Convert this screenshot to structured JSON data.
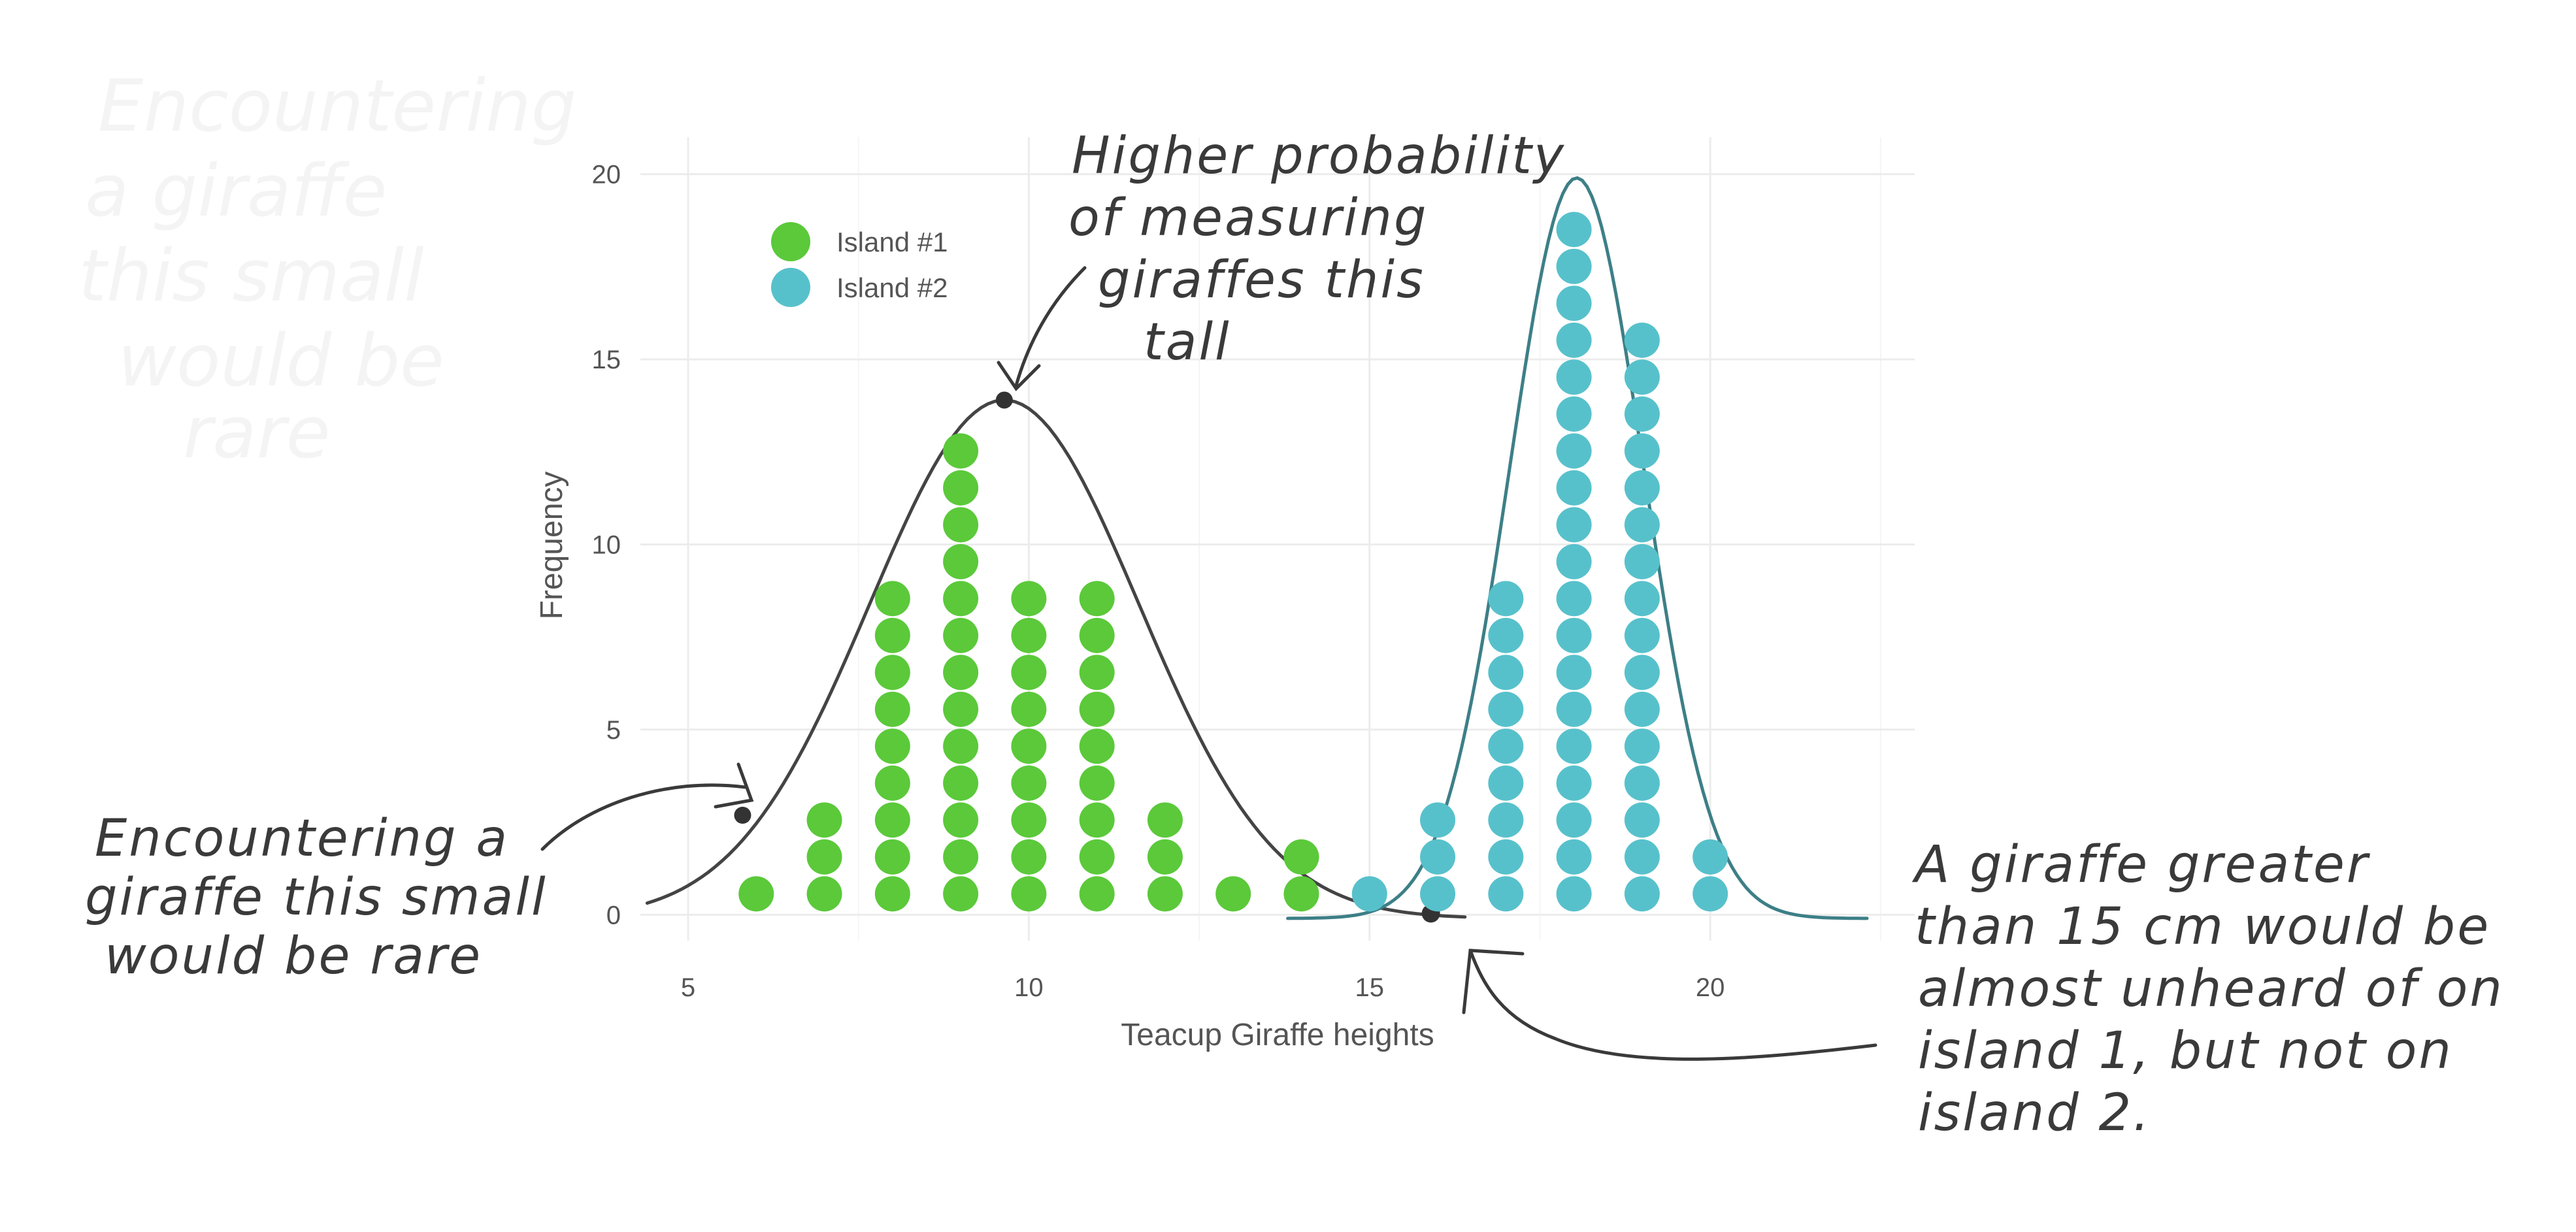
{
  "chart_data": {
    "type": "dot",
    "xlabel": "Teacup Giraffe heights",
    "ylabel": "Frequency",
    "xlim": [
      4.3,
      23.0
    ],
    "ylim": [
      -0.7,
      21
    ],
    "x_ticks": [
      5,
      10,
      15,
      20
    ],
    "y_ticks": [
      0,
      5,
      10,
      15,
      20
    ],
    "grid": true,
    "legend_position": "top-left",
    "series": [
      {
        "name": "Island #1",
        "color": "#5bc93a",
        "x": [
          6,
          7,
          8,
          9,
          10,
          11,
          12,
          13,
          14
        ],
        "counts": [
          1,
          3,
          9,
          13,
          9,
          9,
          3,
          1,
          2
        ]
      },
      {
        "name": "Island #2",
        "color": "#57c1cb",
        "x": [
          15,
          16,
          17,
          18,
          19,
          20
        ],
        "counts": [
          1,
          3,
          9,
          19,
          16,
          2
        ]
      }
    ],
    "annotations": [
      {
        "lines": [
          "Higher probability",
          "of measuring",
          "giraffes this",
          "tall"
        ]
      },
      {
        "lines": [
          "Encountering a",
          "giraffe this small",
          "would be rare"
        ]
      },
      {
        "lines": [
          "A giraffe greater",
          "than 15 cm would be",
          "almost unheard of on",
          "island 1, but not on",
          "island 2."
        ]
      }
    ]
  }
}
